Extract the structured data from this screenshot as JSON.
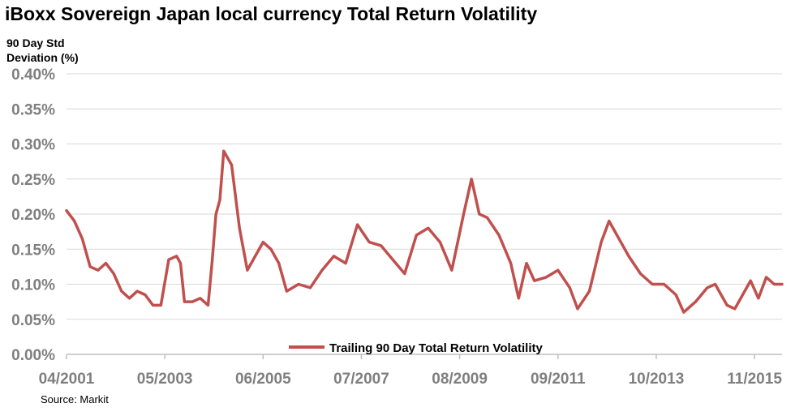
{
  "chart_data": {
    "type": "line",
    "title": "iBoxx Sovereign Japan local currency Total Return Volatility",
    "ylabel": "90 Day Std Deviation (%)",
    "source": "Source: Markit",
    "ylim": [
      0.0,
      0.4
    ],
    "yticks": [
      "0.00%",
      "0.05%",
      "0.10%",
      "0.15%",
      "0.20%",
      "0.25%",
      "0.30%",
      "0.35%",
      "0.40%"
    ],
    "xlim": [
      "2001-04",
      "2016-06"
    ],
    "xticks": [
      "04/2001",
      "05/2003",
      "06/2005",
      "07/2007",
      "08/2009",
      "09/2011",
      "10/2013",
      "11/2015"
    ],
    "grid": "horizontal",
    "legend_position": "bottom-center",
    "color": "#c0504d",
    "series": [
      {
        "name": "Trailing 90 Day Total Return Volatility",
        "points": [
          [
            "2001-04",
            0.205
          ],
          [
            "2001-06",
            0.19
          ],
          [
            "2001-08",
            0.165
          ],
          [
            "2001-10",
            0.125
          ],
          [
            "2001-12",
            0.12
          ],
          [
            "2002-02",
            0.13
          ],
          [
            "2002-04",
            0.115
          ],
          [
            "2002-06",
            0.09
          ],
          [
            "2002-08",
            0.08
          ],
          [
            "2002-10",
            0.09
          ],
          [
            "2002-12",
            0.085
          ],
          [
            "2003-02",
            0.07
          ],
          [
            "2003-04",
            0.07
          ],
          [
            "2003-06",
            0.135
          ],
          [
            "2003-08",
            0.14
          ],
          [
            "2003-09",
            0.13
          ],
          [
            "2003-10",
            0.075
          ],
          [
            "2003-12",
            0.075
          ],
          [
            "2004-02",
            0.08
          ],
          [
            "2004-04",
            0.07
          ],
          [
            "2004-05",
            0.13
          ],
          [
            "2004-06",
            0.2
          ],
          [
            "2004-07",
            0.22
          ],
          [
            "2004-08",
            0.29
          ],
          [
            "2004-10",
            0.27
          ],
          [
            "2004-12",
            0.18
          ],
          [
            "2005-02",
            0.12
          ],
          [
            "2005-04",
            0.14
          ],
          [
            "2005-06",
            0.16
          ],
          [
            "2005-08",
            0.15
          ],
          [
            "2005-10",
            0.13
          ],
          [
            "2005-12",
            0.09
          ],
          [
            "2006-03",
            0.1
          ],
          [
            "2006-06",
            0.095
          ],
          [
            "2006-09",
            0.12
          ],
          [
            "2006-12",
            0.14
          ],
          [
            "2007-03",
            0.13
          ],
          [
            "2007-06",
            0.185
          ],
          [
            "2007-09",
            0.16
          ],
          [
            "2007-12",
            0.155
          ],
          [
            "2008-03",
            0.135
          ],
          [
            "2008-06",
            0.115
          ],
          [
            "2008-09",
            0.17
          ],
          [
            "2008-12",
            0.18
          ],
          [
            "2009-03",
            0.16
          ],
          [
            "2009-06",
            0.12
          ],
          [
            "2009-09",
            0.2
          ],
          [
            "2009-11",
            0.25
          ],
          [
            "2010-01",
            0.2
          ],
          [
            "2010-03",
            0.195
          ],
          [
            "2010-06",
            0.17
          ],
          [
            "2010-09",
            0.13
          ],
          [
            "2010-11",
            0.08
          ],
          [
            "2011-01",
            0.13
          ],
          [
            "2011-03",
            0.105
          ],
          [
            "2011-06",
            0.11
          ],
          [
            "2011-09",
            0.12
          ],
          [
            "2011-12",
            0.095
          ],
          [
            "2012-02",
            0.065
          ],
          [
            "2012-05",
            0.09
          ],
          [
            "2012-08",
            0.16
          ],
          [
            "2012-10",
            0.19
          ],
          [
            "2012-12",
            0.17
          ],
          [
            "2013-03",
            0.14
          ],
          [
            "2013-06",
            0.115
          ],
          [
            "2013-09",
            0.1
          ],
          [
            "2013-12",
            0.1
          ],
          [
            "2014-03",
            0.085
          ],
          [
            "2014-05",
            0.06
          ],
          [
            "2014-08",
            0.075
          ],
          [
            "2014-11",
            0.095
          ],
          [
            "2015-01",
            0.1
          ],
          [
            "2015-04",
            0.07
          ],
          [
            "2015-06",
            0.065
          ],
          [
            "2015-08",
            0.085
          ],
          [
            "2015-10",
            0.105
          ],
          [
            "2015-12",
            0.08
          ],
          [
            "2016-02",
            0.11
          ],
          [
            "2016-04",
            0.1
          ],
          [
            "2016-06",
            0.1
          ]
        ]
      }
    ]
  }
}
